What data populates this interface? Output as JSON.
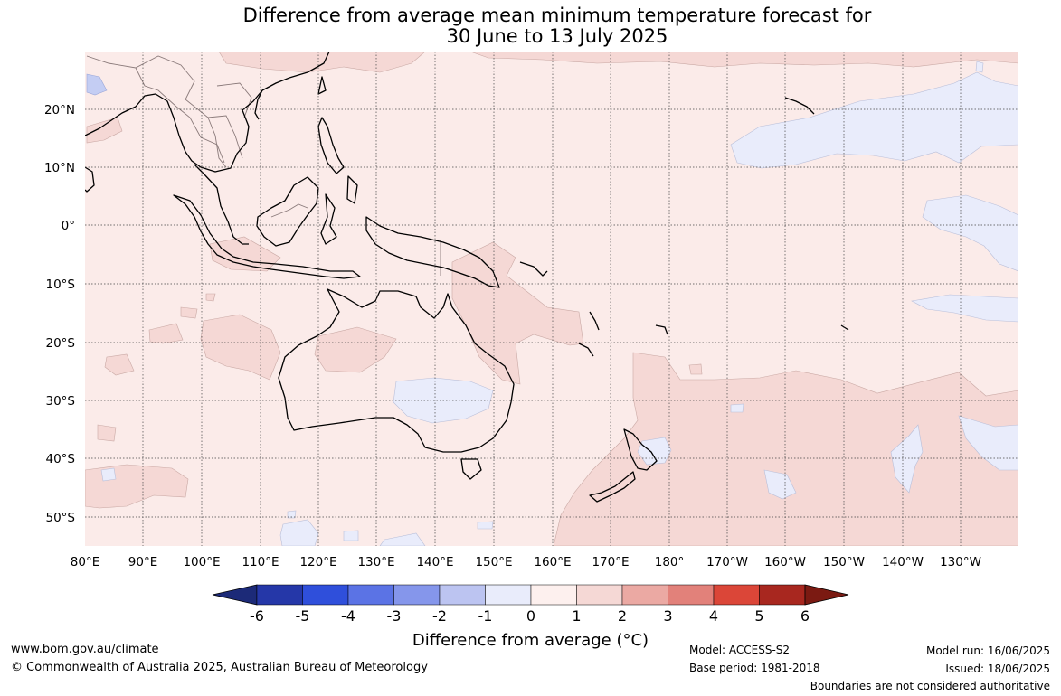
{
  "title_line1": "Difference from average mean minimum temperature forecast for",
  "title_line2": "30 June to 13 July 2025",
  "map": {
    "lat_ticks": [
      "20°N",
      "10°N",
      "0°",
      "10°S",
      "20°S",
      "30°S",
      "40°S",
      "50°S"
    ],
    "lon_ticks": [
      "80°E",
      "90°E",
      "100°E",
      "110°E",
      "120°E",
      "130°E",
      "140°E",
      "150°E",
      "160°E",
      "170°E",
      "180°",
      "170°W",
      "160°W",
      "150°W",
      "140°W",
      "130°W"
    ],
    "colors": {
      "background_0_to_1": "#fbebe9",
      "warm_1_to_2": "#f5d8d5",
      "cool_-1_to_0": "#e9ecfb",
      "cool_-2_to_-1": "#c4cdf3",
      "coastline": "#000000",
      "border": "#8a7a7a"
    }
  },
  "colorbar": {
    "tick_labels": [
      "-6",
      "-5",
      "-4",
      "-3",
      "-2",
      "-1",
      "0",
      "1",
      "2",
      "3",
      "4",
      "5",
      "6"
    ],
    "colors": [
      "#1c2a78",
      "#2537a8",
      "#2f4fdb",
      "#5b73e5",
      "#8596eb",
      "#bcc4f1",
      "#e9ecfb",
      "#fdf0ee",
      "#f5d8d5",
      "#eba9a3",
      "#e2817a",
      "#db4638",
      "#a8271f",
      "#7b1a12"
    ],
    "title": "Difference from average (°C)"
  },
  "footer": {
    "url": "www.bom.gov.au/climate",
    "copyright": "© Commonwealth of Australia 2025, Australian Bureau of Meteorology",
    "model": "Model: ACCESS-S2",
    "base_period": "Base period: 1981-2018",
    "model_run": "Model run: 16/06/2025",
    "issued": "Issued: 18/06/2025",
    "disclaimer": "Boundaries are not considered authoritative"
  }
}
